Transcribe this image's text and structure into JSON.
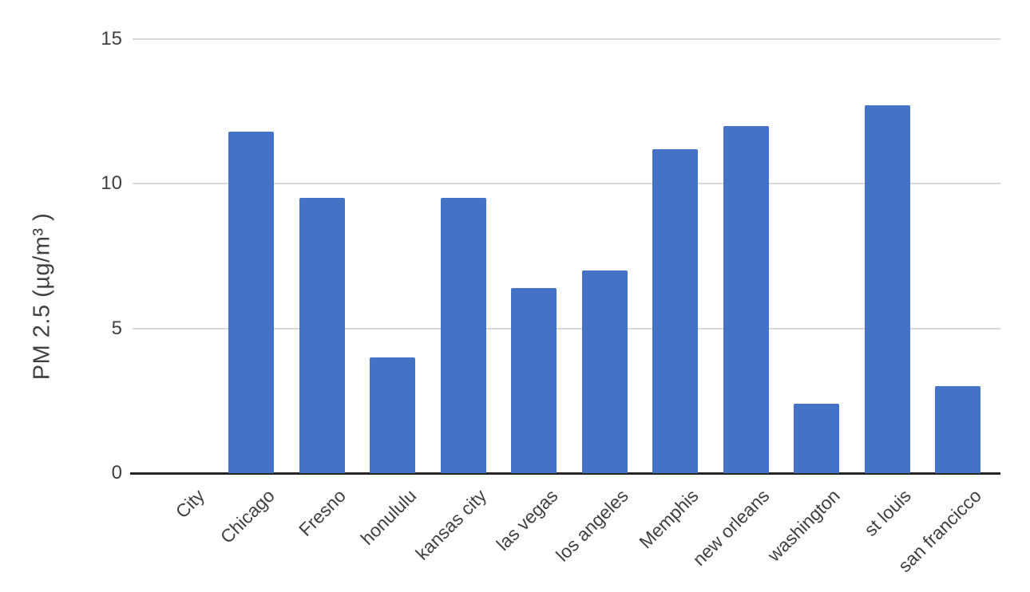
{
  "chart_data": {
    "type": "bar",
    "categories": [
      "City",
      "Chicago",
      "Fresno",
      "honululu",
      "kansas city",
      "las vegas",
      "los angeles",
      "Memphis",
      "new orleans",
      "washington",
      "st louis",
      "san francicco"
    ],
    "values": [
      0,
      11.8,
      9.5,
      4,
      9.5,
      6.4,
      7,
      11.2,
      12,
      2.4,
      12.7,
      3
    ],
    "title": "",
    "xlabel": "",
    "ylabel": "PM 2.5 (µg/m³ )",
    "ylim": [
      0,
      15
    ],
    "yticks": [
      0,
      5,
      10,
      15
    ],
    "grid": true,
    "legend": false,
    "x_label_rotation_deg": -45,
    "colors": {
      "bar": "#4472C4",
      "gridline": "#D9D9D9",
      "axis_line": "#262626",
      "text": "#404040"
    }
  }
}
